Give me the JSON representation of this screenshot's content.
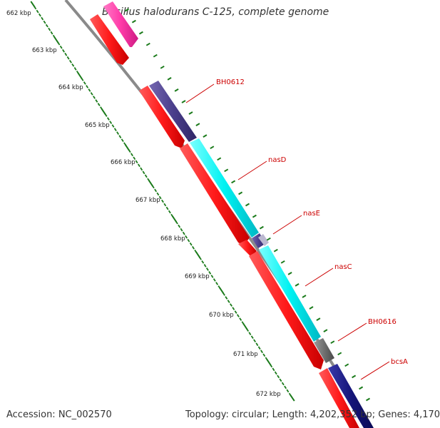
{
  "title": "Bacillus halodurans C-125, complete genome",
  "footer": {
    "accession": "Accession: NC_002570",
    "summary": "Topology: circular; Length: 4,202,352 bp; Genes: 4,170"
  },
  "kbp_ticks": [
    "662 kbp",
    "663 kbp",
    "664 kbp",
    "665 kbp",
    "666 kbp",
    "667 kbp",
    "668 kbp",
    "669 kbp",
    "670 kbp",
    "671 kbp",
    "672 kbp"
  ],
  "gene_labels": [
    "BH0612",
    "nasD",
    "nasE",
    "nasC",
    "BH0616",
    "bcsA"
  ],
  "colors": {
    "backbone": "#8a8a8a",
    "tick": "#1a7a1a",
    "cds_red": "#ff1a1a",
    "pink": "#ff3aa8",
    "slate": "#4b3f8c",
    "cyan": "#00f2f2",
    "gray": "#707070",
    "navy": "#15157a",
    "label": "#cc0000"
  }
}
